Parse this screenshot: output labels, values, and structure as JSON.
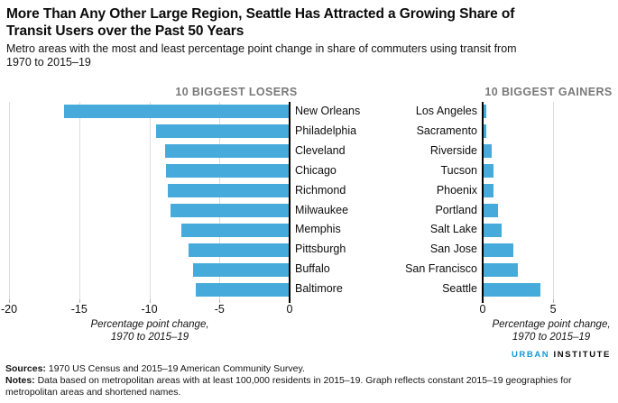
{
  "title": {
    "line1": "More Than Any Other Large Region, Seattle Has Attracted a Growing Share of",
    "line2": "Transit Users over the Past 50 Years"
  },
  "subtitle": {
    "line1": "Metro areas with the most and least percentage point change in share of commuters using transit from",
    "line2": "1970 to 2015–19"
  },
  "chart_data": [
    {
      "type": "bar",
      "orientation": "horizontal",
      "title": "10 BIGGEST LOSERS",
      "categories": [
        "New Orleans",
        "Philadelphia",
        "Cleveland",
        "Chicago",
        "Richmond",
        "Milwaukee",
        "Memphis",
        "Pittsburgh",
        "Buffalo",
        "Baltimore"
      ],
      "values": [
        -16.1,
        -9.5,
        -8.9,
        -8.8,
        -8.7,
        -8.5,
        -7.7,
        -7.2,
        -6.9,
        -6.7
      ],
      "xlim": [
        -20,
        0
      ],
      "xticks": [
        -20,
        -15,
        -10,
        -5,
        0
      ],
      "xtick_labels": [
        "-20",
        "-15",
        "-10",
        "-5",
        "0"
      ],
      "xlabel_line1": "Percentage point change,",
      "xlabel_line2": "1970 to 2015–19",
      "bar_color": "#46abdb",
      "grid": true,
      "legend": "none"
    },
    {
      "type": "bar",
      "orientation": "horizontal",
      "title": "10 BIGGEST GAINERS",
      "categories": [
        "Los Angeles",
        "Sacramento",
        "Riverside",
        "Tucson",
        "Phoenix",
        "Portland",
        "Salt Lake",
        "San Jose",
        "San Francisco",
        "Seattle"
      ],
      "values": [
        0.2,
        0.2,
        0.6,
        0.7,
        0.7,
        1.0,
        1.3,
        2.1,
        2.4,
        4.0
      ],
      "xlim": [
        0,
        9.6
      ],
      "xticks": [
        0,
        5
      ],
      "xtick_labels": [
        "0",
        "5"
      ],
      "xlabel_line1": "Percentage point change,",
      "xlabel_line2": "1970 to 2015–19",
      "bar_color": "#46abdb",
      "grid": true,
      "legend": "none"
    }
  ],
  "footer": {
    "sources_label": "Sources:",
    "sources_text": " 1970 US Census and 2015–19 American Community Survey.",
    "notes_label": "Notes:",
    "notes_text": " Data based on metropolitan areas with at least 100,000 residents in 2015–19. Graph reflects constant 2015–19 geographies for metropolitan areas and shortened names.",
    "logo": {
      "part1": "URBAN",
      "part2": "INSTITUTE",
      "brand_color": "#1696d2"
    }
  }
}
